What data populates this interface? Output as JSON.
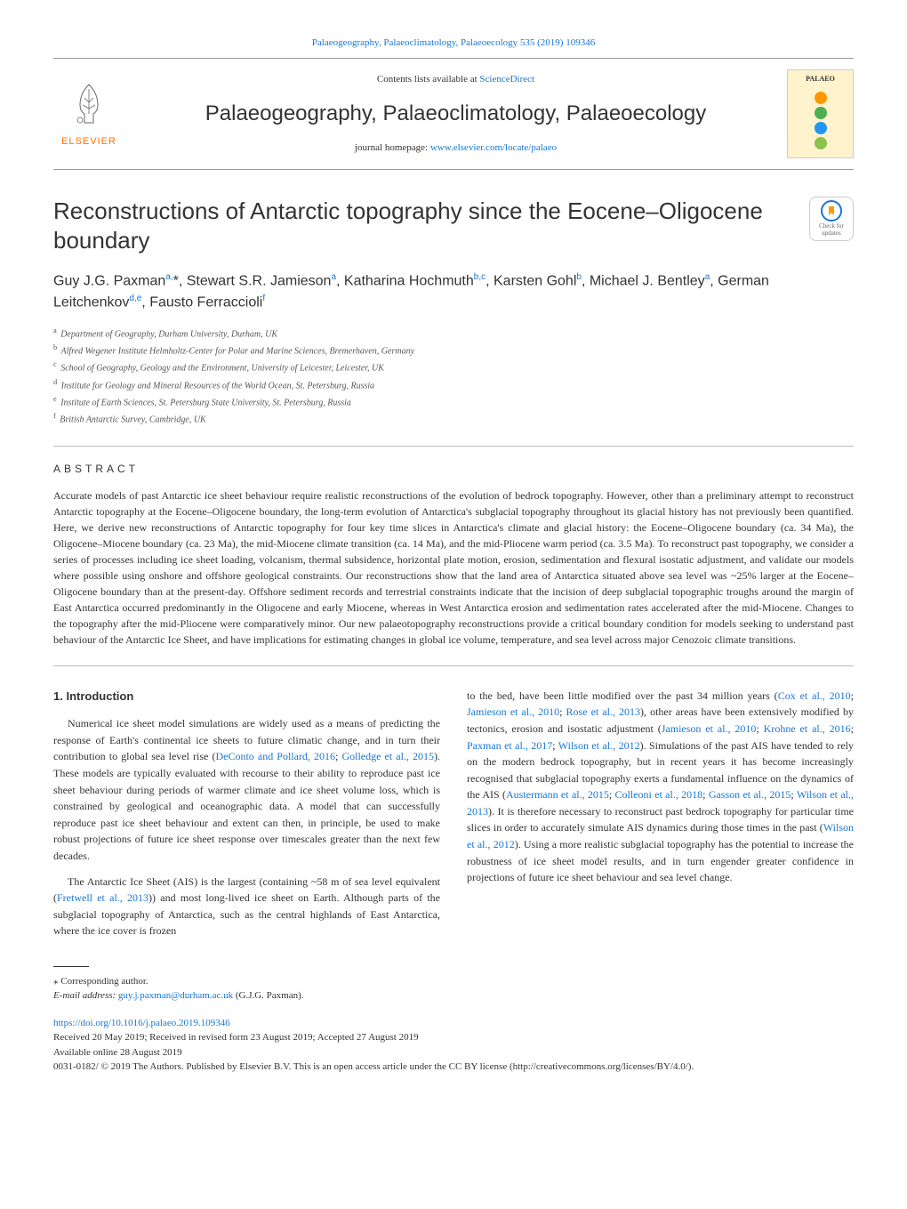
{
  "journal_ref": "Palaeogeography, Palaeoclimatology, Palaeoecology 535 (2019) 109346",
  "header": {
    "contents_text": "Contents lists available at ",
    "contents_link": "ScienceDirect",
    "journal_title": "Palaeogeography, Palaeoclimatology, Palaeoecology",
    "homepage_text": "journal homepage: ",
    "homepage_link": "www.elsevier.com/locate/palaeo",
    "publisher": "ELSEVIER",
    "cover_label": "PALAEO",
    "cover_circle_colors": [
      "#ff9800",
      "#4caf50",
      "#2196f3",
      "#8bc34a"
    ]
  },
  "update_badge": {
    "text": "Check for updates"
  },
  "article": {
    "title": "Reconstructions of Antarctic topography since the Eocene–Oligocene boundary",
    "authors_html": "Guy J.G. Paxman<sup>a,</sup>*, Stewart S.R. Jamieson<sup>a</sup>, Katharina Hochmuth<sup>b,c</sup>, Karsten Gohl<sup>b</sup>, Michael J. Bentley<sup>a</sup>, German Leitchenkov<sup>d,e</sup>, Fausto Ferraccioli<sup>f</sup>",
    "affiliations": [
      {
        "sup": "a",
        "text": "Department of Geography, Durham University, Durham, UK"
      },
      {
        "sup": "b",
        "text": "Alfred Wegener Institute Helmholtz-Center for Polar and Marine Sciences, Bremerhaven, Germany"
      },
      {
        "sup": "c",
        "text": "School of Geography, Geology and the Environment, University of Leicester, Leicester, UK"
      },
      {
        "sup": "d",
        "text": "Institute for Geology and Mineral Resources of the World Ocean, St. Petersburg, Russia"
      },
      {
        "sup": "e",
        "text": "Institute of Earth Sciences, St. Petersburg State University, St. Petersburg, Russia"
      },
      {
        "sup": "f",
        "text": "British Antarctic Survey, Cambridge, UK"
      }
    ]
  },
  "abstract": {
    "heading": "ABSTRACT",
    "text": "Accurate models of past Antarctic ice sheet behaviour require realistic reconstructions of the evolution of bedrock topography. However, other than a preliminary attempt to reconstruct Antarctic topography at the Eocene–Oligocene boundary, the long-term evolution of Antarctica's subglacial topography throughout its glacial history has not previously been quantified. Here, we derive new reconstructions of Antarctic topography for four key time slices in Antarctica's climate and glacial history: the Eocene–Oligocene boundary (ca. 34 Ma), the Oligocene–Miocene boundary (ca. 23 Ma), the mid-Miocene climate transition (ca. 14 Ma), and the mid-Pliocene warm period (ca. 3.5 Ma). To reconstruct past topography, we consider a series of processes including ice sheet loading, volcanism, thermal subsidence, horizontal plate motion, erosion, sedimentation and flexural isostatic adjustment, and validate our models where possible using onshore and offshore geological constraints. Our reconstructions show that the land area of Antarctica situated above sea level was ~25% larger at the Eocene–Oligocene boundary than at the present-day. Offshore sediment records and terrestrial constraints indicate that the incision of deep subglacial topographic troughs around the margin of East Antarctica occurred predominantly in the Oligocene and early Miocene, whereas in West Antarctica erosion and sedimentation rates accelerated after the mid-Miocene. Changes to the topography after the mid-Pliocene were comparatively minor. Our new palaeotopography reconstructions provide a critical boundary condition for models seeking to understand past behaviour of the Antarctic Ice Sheet, and have implications for estimating changes in global ice volume, temperature, and sea level across major Cenozoic climate transitions."
  },
  "intro": {
    "heading": "1. Introduction",
    "left_paras": [
      "Numerical ice sheet model simulations are widely used as a means of predicting the response of Earth's continental ice sheets to future climatic change, and in turn their contribution to global sea level rise (<span class='cite'>DeConto and Pollard, 2016</span>; <span class='cite'>Golledge et al., 2015</span>). These models are typically evaluated with recourse to their ability to reproduce past ice sheet behaviour during periods of warmer climate and ice sheet volume loss, which is constrained by geological and oceanographic data. A model that can successfully reproduce past ice sheet behaviour and extent can then, in principle, be used to make robust projections of future ice sheet response over timescales greater than the next few decades.",
      "The Antarctic Ice Sheet (AIS) is the largest (containing ~58 m of sea level equivalent (<span class='cite'>Fretwell et al., 2013</span>)) and most long-lived ice sheet on Earth. Although parts of the subglacial topography of Antarctica, such as the central highlands of East Antarctica, where the ice cover is frozen"
    ],
    "right_paras": [
      "to the bed, have been little modified over the past 34 million years (<span class='cite'>Cox et al., 2010</span>; <span class='cite'>Jamieson et al., 2010</span>; <span class='cite'>Rose et al., 2013</span>), other areas have been extensively modified by tectonics, erosion and isostatic adjustment (<span class='cite'>Jamieson et al., 2010</span>; <span class='cite'>Krohne et al., 2016</span>; <span class='cite'>Paxman et al., 2017</span>; <span class='cite'>Wilson et al., 2012</span>). Simulations of the past AIS have tended to rely on the modern bedrock topography, but in recent years it has become increasingly recognised that subglacial topography exerts a fundamental influence on the dynamics of the AIS (<span class='cite'>Austermann et al., 2015</span>; <span class='cite'>Colleoni et al., 2018</span>; <span class='cite'>Gasson et al., 2015</span>; <span class='cite'>Wilson et al., 2013</span>). It is therefore necessary to reconstruct past bedrock topography for particular time slices in order to accurately simulate AIS dynamics during those times in the past (<span class='cite'>Wilson et al., 2012</span>). Using a more realistic subglacial topography has the potential to increase the robustness of ice sheet model results, and in turn engender greater confidence in projections of future ice sheet behaviour and sea level change."
    ]
  },
  "footer": {
    "corresponding": "⁎ Corresponding author.",
    "email_label": "E-mail address: ",
    "email": "guy.j.paxman@durham.ac.uk",
    "email_name": " (G.J.G. Paxman).",
    "doi": "https://doi.org/10.1016/j.palaeo.2019.109346",
    "received": "Received 20 May 2019; Received in revised form 23 August 2019; Accepted 27 August 2019",
    "available": "Available online 28 August 2019",
    "copyright": "0031-0182/ © 2019 The Authors. Published by Elsevier B.V. This is an open access article under the CC BY license (http://creativecommons.org/licenses/BY/4.0/)."
  }
}
